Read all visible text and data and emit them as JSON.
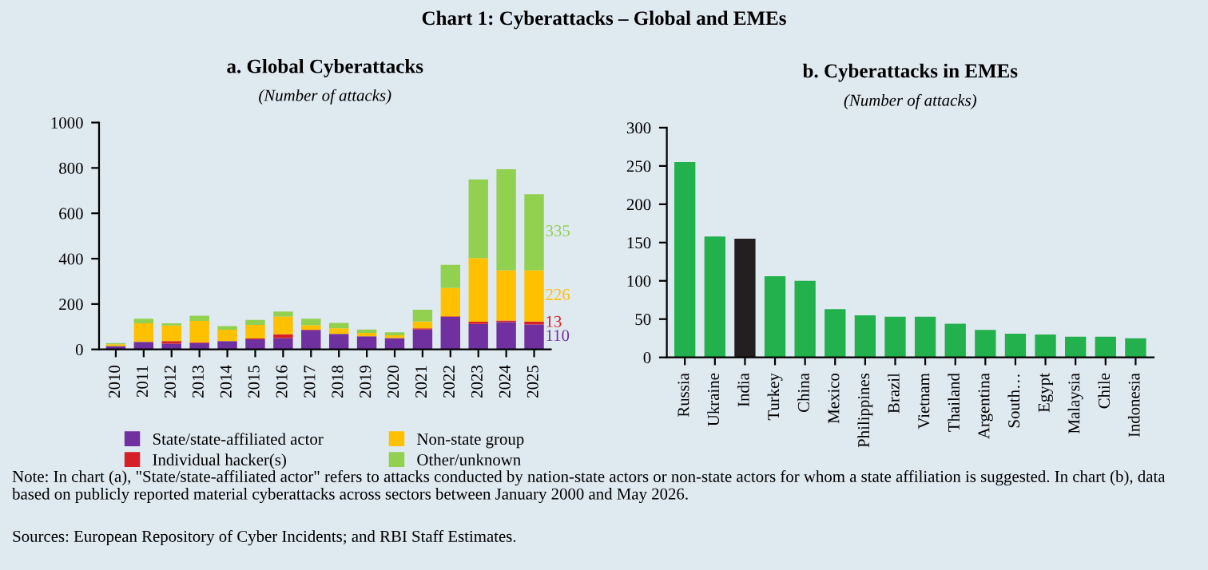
{
  "chart_data": [
    {
      "type": "bar",
      "title": "a. Global Cyberattacks",
      "subtitle": "(Number of attacks)",
      "stacked": true,
      "legend": "bottom",
      "categories": [
        "2010",
        "2011",
        "2012",
        "2013",
        "2014",
        "2015",
        "2016",
        "2017",
        "2018",
        "2019",
        "2020",
        "2021",
        "2022",
        "2023",
        "2024",
        "2025"
      ],
      "series": [
        {
          "name": "State/state-affiliated actor",
          "color": "#7030a0",
          "values": [
            15,
            33,
            25,
            28,
            37,
            45,
            50,
            85,
            68,
            58,
            50,
            88,
            143,
            112,
            120,
            110
          ],
          "value_labels": [
            null,
            null,
            null,
            null,
            null,
            null,
            null,
            null,
            null,
            null,
            null,
            null,
            null,
            null,
            null,
            "110"
          ]
        },
        {
          "name": "Individual hacker(s)",
          "color": "#d62027",
          "values": [
            0,
            null,
            12,
            3,
            null,
            3,
            17,
            2,
            null,
            null,
            null,
            5,
            3,
            10,
            7,
            13
          ],
          "value_labels": [
            null,
            null,
            null,
            null,
            null,
            null,
            null,
            null,
            null,
            null,
            null,
            null,
            null,
            null,
            null,
            "13"
          ]
        },
        {
          "name": "Non-state group",
          "color": "#ffc000",
          "values": [
            8,
            82,
            68,
            95,
            50,
            60,
            78,
            20,
            25,
            15,
            12,
            30,
            125,
            281,
            222,
            226
          ],
          "value_labels": [
            null,
            null,
            null,
            null,
            null,
            null,
            null,
            null,
            null,
            null,
            null,
            null,
            null,
            null,
            null,
            "226"
          ]
        },
        {
          "name": "Other/unknown",
          "color": "#92d050",
          "values": [
            5,
            20,
            10,
            22,
            16,
            22,
            22,
            28,
            24,
            15,
            13,
            52,
            102,
            346,
            445,
            335
          ],
          "value_labels": [
            null,
            null,
            null,
            null,
            null,
            null,
            null,
            null,
            null,
            null,
            null,
            null,
            null,
            null,
            null,
            "335"
          ]
        }
      ],
      "ylim": [
        0,
        1000
      ],
      "yticks": [
        0,
        200,
        400,
        600,
        800,
        1000
      ],
      "annotations": [
        "Chart 1: Cyberattacks – Global and EMEs",
        "Note: In chart (a), \"State/state-affiliated actor\" refers to attacks conducted by nation-state actors or non-state actors for whom a state affiliation is suggested. In chart (b), data based on publicly reported material cyberattacks across sectors between January 2000 and May 2026.",
        "Sources: European Repository of Cyber Incidents; and RBI Staff Estimates."
      ]
    },
    {
      "type": "bar",
      "title": "b. Cyberattacks in EMEs",
      "subtitle": "(Number of attacks)",
      "categories": [
        "Russia",
        "Ukraine",
        "India",
        "Turkey",
        "China",
        "Mexico",
        "Philippines",
        "Brazil",
        "Vietnam",
        "Thailand",
        "Argentina",
        "South…",
        "Egypt",
        "Malaysia",
        "Chile",
        "Indonesia"
      ],
      "values": [
        255,
        158,
        155,
        106,
        100,
        63,
        55,
        53,
        53,
        44,
        36,
        31,
        30,
        27,
        27,
        25
      ],
      "colors": [
        "#22b14c",
        "#22b14c",
        "#231f20",
        "#22b14c",
        "#22b14c",
        "#22b14c",
        "#22b14c",
        "#22b14c",
        "#22b14c",
        "#22b14c",
        "#22b14c",
        "#22b14c",
        "#22b14c",
        "#22b14c",
        "#22b14c",
        "#22b14c"
      ],
      "ylim": [
        0,
        300
      ],
      "yticks": [
        0,
        50,
        100,
        150,
        200,
        250,
        300
      ]
    }
  ]
}
